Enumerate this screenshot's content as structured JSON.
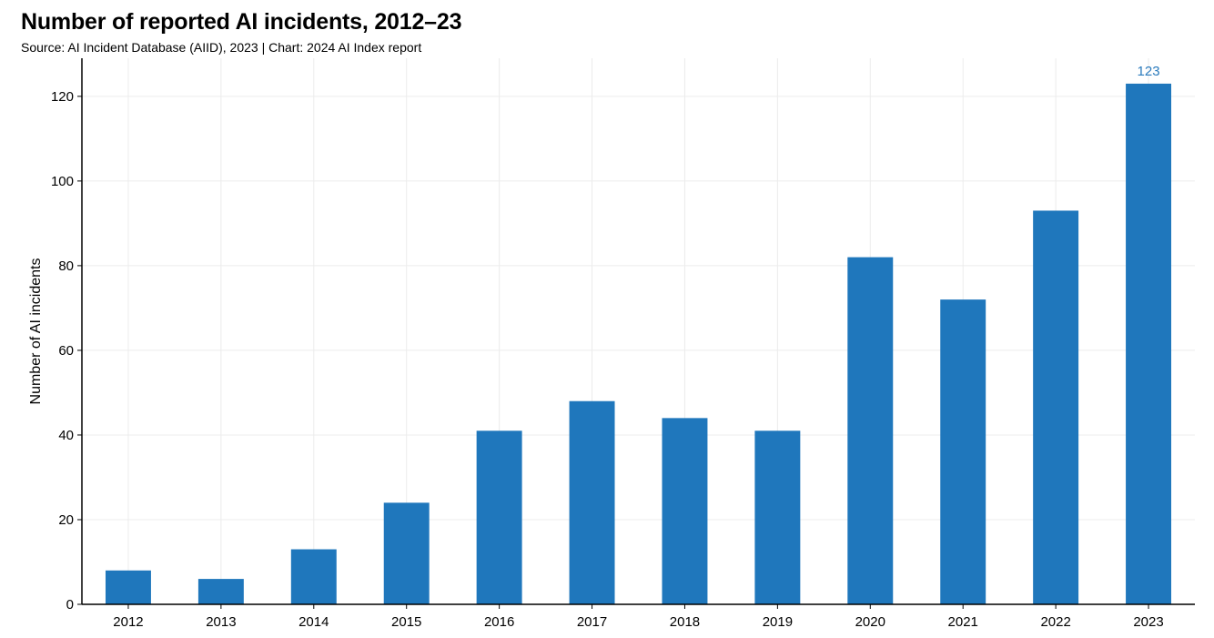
{
  "title": "Number of reported AI incidents, 2012–23",
  "subtitle": "Source: AI Incident Database (AIID), 2023 | Chart: 2024 AI Index report",
  "colors": {
    "bar": "#1f77bc",
    "highlight_label": "#2b7bbd",
    "grid": "#ececec",
    "axis": "#000000"
  },
  "chart_data": {
    "type": "bar",
    "title": "Number of reported AI incidents, 2012–23",
    "subtitle": "Source: AI Incident Database (AIID), 2023 | Chart: 2024 AI Index report",
    "xlabel": "",
    "ylabel": "Number of AI incidents",
    "categories": [
      "2012",
      "2013",
      "2014",
      "2015",
      "2016",
      "2017",
      "2018",
      "2019",
      "2020",
      "2021",
      "2022",
      "2023"
    ],
    "values": [
      8,
      6,
      13,
      24,
      41,
      48,
      44,
      41,
      82,
      72,
      93,
      123
    ],
    "ylim": [
      0,
      129
    ],
    "yticks": [
      0,
      20,
      40,
      60,
      80,
      100,
      120
    ],
    "grid": true,
    "legend": "none",
    "annotations": [
      {
        "category": "2023",
        "text": "123"
      }
    ]
  }
}
